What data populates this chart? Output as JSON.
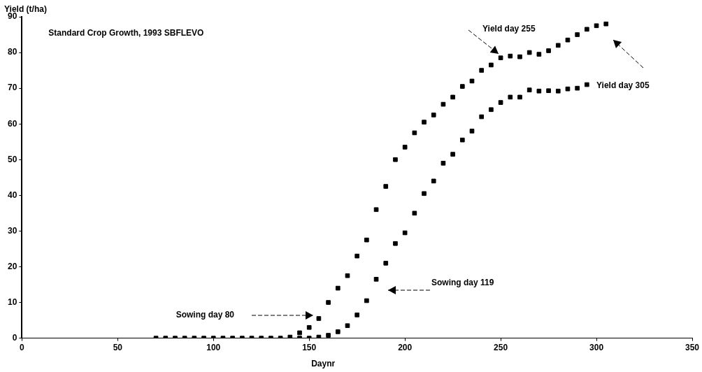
{
  "chart_data": {
    "type": "scatter",
    "title": "Standard Crop Growth, 1993 SBFLEVO",
    "xlabel": "Daynr",
    "ylabel": "Yield (t/ha)",
    "xlim": [
      0,
      350
    ],
    "xticks": [
      0,
      50,
      100,
      150,
      200,
      250,
      300,
      350
    ],
    "ylim": [
      0,
      90
    ],
    "yticks": [
      0,
      10,
      20,
      30,
      40,
      50,
      60,
      70,
      80,
      90
    ],
    "grid": false,
    "legend": false,
    "marker": "square",
    "series": [
      {
        "color": "#000000",
        "x": [
          70,
          75,
          80,
          85,
          90,
          95,
          100,
          105,
          110,
          115,
          120,
          125,
          130,
          135,
          140,
          145,
          150,
          155,
          160,
          165,
          170,
          175,
          180,
          185,
          190,
          195,
          200,
          205,
          210,
          215,
          220,
          225,
          230,
          235,
          240,
          245,
          250,
          255,
          260,
          265,
          270,
          275,
          280,
          285,
          290,
          295,
          300,
          305
        ],
        "values": [
          0,
          0,
          0,
          0,
          0,
          0,
          0,
          0,
          0,
          0,
          0,
          0,
          0,
          0,
          0.3,
          1.5,
          3,
          5.5,
          10,
          14,
          17.5,
          23,
          27.5,
          36,
          42.5,
          50,
          53.5,
          57.5,
          60.5,
          62.5,
          65.5,
          67.5,
          70.5,
          72,
          75,
          76.5,
          78.5,
          79,
          78.8,
          80,
          79.5,
          80.5,
          82,
          83.5,
          85,
          86.5,
          87.5,
          88
        ]
      },
      {
        "color": "#000000",
        "x": [
          145,
          150,
          155,
          160,
          165,
          170,
          175,
          180,
          185,
          190,
          195,
          200,
          205,
          210,
          215,
          220,
          225,
          230,
          235,
          240,
          245,
          250,
          255,
          260,
          265,
          270,
          275,
          280,
          285,
          290,
          295
        ],
        "values": [
          0,
          0,
          0.3,
          0.8,
          1.8,
          3.5,
          6.5,
          10.5,
          16.5,
          21,
          26.5,
          29.5,
          35,
          40.5,
          44,
          49,
          51.5,
          55.5,
          58,
          62,
          64,
          66,
          67.5,
          67.5,
          69.5,
          69.2,
          69.3,
          69.2,
          69.8,
          70,
          71
        ]
      }
    ],
    "annotations": [
      "Sowing day 80",
      "Sowing day 119",
      "Yield day 255",
      "Yield day 305"
    ]
  }
}
